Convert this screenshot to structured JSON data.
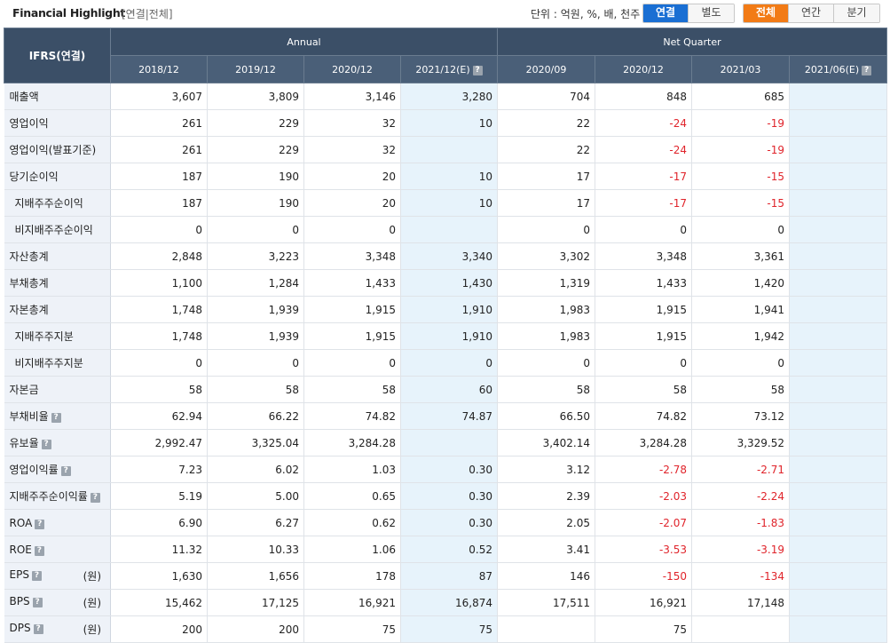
{
  "header": {
    "title": "Financial Highlight",
    "subtitle": "[연결|전체]",
    "unit_label": "단위 : 억원, %, 배, 천주"
  },
  "toggle_scope": [
    {
      "label": "연결",
      "active": true
    },
    {
      "label": "별도",
      "active": false
    }
  ],
  "toggle_period": [
    {
      "label": "전체",
      "active": true
    },
    {
      "label": "연간",
      "active": false
    },
    {
      "label": "분기",
      "active": false
    }
  ],
  "table": {
    "corner": "IFRS(연결)",
    "group_annual": "Annual",
    "group_quarter": "Net Quarter",
    "periods": [
      "2018/12",
      "2019/12",
      "2020/12",
      "2021/12(E)",
      "2020/09",
      "2020/12",
      "2021/03",
      "2021/06(E)"
    ],
    "rows": [
      {
        "label": "매출액",
        "values": [
          "3,607",
          "3,809",
          "3,146",
          "3,280",
          "704",
          "848",
          "685",
          ""
        ]
      },
      {
        "label": "영업이익",
        "values": [
          "261",
          "229",
          "32",
          "10",
          "22",
          "-24",
          "-19",
          ""
        ]
      },
      {
        "label": "영업이익(발표기준)",
        "values": [
          "261",
          "229",
          "32",
          "",
          "22",
          "-24",
          "-19",
          ""
        ]
      },
      {
        "label": "당기순이익",
        "values": [
          "187",
          "190",
          "20",
          "10",
          "17",
          "-17",
          "-15",
          ""
        ]
      },
      {
        "label": "지배주주순이익",
        "values": [
          "187",
          "190",
          "20",
          "10",
          "17",
          "-17",
          "-15",
          ""
        ]
      },
      {
        "label": "비지배주주순이익",
        "values": [
          "0",
          "0",
          "0",
          "",
          "0",
          "0",
          "0",
          ""
        ]
      },
      {
        "label": "자산총계",
        "values": [
          "2,848",
          "3,223",
          "3,348",
          "3,340",
          "3,302",
          "3,348",
          "3,361",
          ""
        ]
      },
      {
        "label": "부채총계",
        "values": [
          "1,100",
          "1,284",
          "1,433",
          "1,430",
          "1,319",
          "1,433",
          "1,420",
          ""
        ]
      },
      {
        "label": "자본총계",
        "values": [
          "1,748",
          "1,939",
          "1,915",
          "1,910",
          "1,983",
          "1,915",
          "1,941",
          ""
        ]
      },
      {
        "label": "지배주주지분",
        "values": [
          "1,748",
          "1,939",
          "1,915",
          "1,910",
          "1,983",
          "1,915",
          "1,942",
          ""
        ]
      },
      {
        "label": "비지배주주지분",
        "values": [
          "0",
          "0",
          "0",
          "0",
          "0",
          "0",
          "0",
          ""
        ]
      },
      {
        "label": "자본금",
        "values": [
          "58",
          "58",
          "58",
          "60",
          "58",
          "58",
          "58",
          ""
        ]
      },
      {
        "label": "부채비율",
        "values": [
          "62.94",
          "66.22",
          "74.82",
          "74.87",
          "66.50",
          "74.82",
          "73.12",
          ""
        ]
      },
      {
        "label": "유보율",
        "values": [
          "2,992.47",
          "3,325.04",
          "3,284.28",
          "",
          "3,402.14",
          "3,284.28",
          "3,329.52",
          ""
        ]
      },
      {
        "label": "영업이익률",
        "values": [
          "7.23",
          "6.02",
          "1.03",
          "0.30",
          "3.12",
          "-2.78",
          "-2.71",
          ""
        ]
      },
      {
        "label": "지배주주순이익률",
        "values": [
          "5.19",
          "5.00",
          "0.65",
          "0.30",
          "2.39",
          "-2.03",
          "-2.24",
          ""
        ]
      },
      {
        "label": "ROA",
        "values": [
          "6.90",
          "6.27",
          "0.62",
          "0.30",
          "2.05",
          "-2.07",
          "-1.83",
          ""
        ]
      },
      {
        "label": "ROE",
        "values": [
          "11.32",
          "10.33",
          "1.06",
          "0.52",
          "3.41",
          "-3.53",
          "-3.19",
          ""
        ]
      },
      {
        "label": "EPS",
        "unit": "(원)",
        "values": [
          "1,630",
          "1,656",
          "178",
          "87",
          "146",
          "-150",
          "-134",
          ""
        ]
      },
      {
        "label": "BPS",
        "unit": "(원)",
        "values": [
          "15,462",
          "17,125",
          "16,921",
          "16,874",
          "17,511",
          "16,921",
          "17,148",
          ""
        ]
      },
      {
        "label": "DPS",
        "unit": "(원)",
        "values": [
          "200",
          "200",
          "75",
          "75",
          "",
          "75",
          "",
          ""
        ]
      }
    ]
  }
}
